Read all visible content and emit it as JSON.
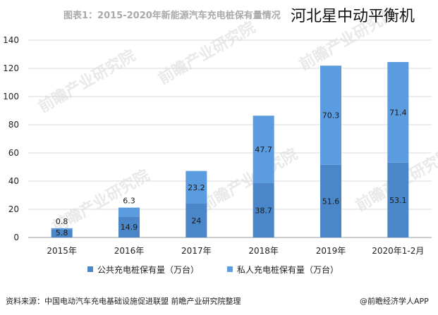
{
  "header": {
    "title": "图表1：2015-2020年新能源汽车充电桩保有量情况",
    "overlay": "河北星中动平衡机"
  },
  "chart_data": {
    "type": "bar",
    "stacked": true,
    "categories": [
      "2015年",
      "2016年",
      "2017年",
      "2018年",
      "2019年",
      "2020年1-2月"
    ],
    "series": [
      {
        "name": "公共充电桩保有量（万台）",
        "values": [
          5.8,
          14.9,
          24,
          38.7,
          51.6,
          53.1
        ],
        "labels": [
          "5.8",
          "14.9",
          "24",
          "38.7",
          "51.6",
          "53.1"
        ],
        "color": "#4a86c8"
      },
      {
        "name": "私人充电桩保有量（万台）",
        "values": [
          0.8,
          6.3,
          23.2,
          47.7,
          70.3,
          71.4
        ],
        "labels": [
          "0.8",
          "6.3",
          "23.2",
          "47.7",
          "70.3",
          "71.4"
        ],
        "color": "#5b9bdf"
      }
    ],
    "ylim": [
      0,
      140
    ],
    "yticks": [
      "0",
      "20",
      "40",
      "60",
      "80",
      "100",
      "120",
      "140"
    ],
    "grid": true,
    "legend_position": "bottom",
    "xlabel": "",
    "ylabel": ""
  },
  "watermark": {
    "text": "前瞻产业研究院"
  },
  "footer": {
    "source": "资料来源：中国电动汽车充电基础设施促进联盟 前瞻产业研究院整理",
    "brand": "@前瞻经济学人APP"
  }
}
